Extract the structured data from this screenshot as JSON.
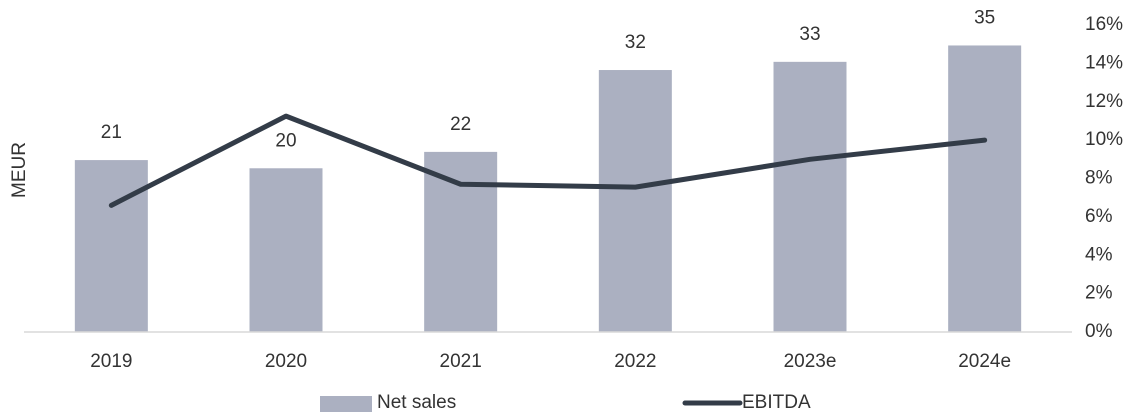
{
  "chart_data": {
    "type": "bar_line",
    "y_label": "MEUR",
    "categories": [
      "2019",
      "2020",
      "2021",
      "2022",
      "2023e",
      "2024e"
    ],
    "series": [
      {
        "name": "Net sales",
        "type": "bar",
        "color": "#abb0c1",
        "values": [
          21,
          20,
          22,
          32,
          33,
          35
        ]
      },
      {
        "name": "EBITDA",
        "type": "line",
        "axis": "y2",
        "color": "#333c48",
        "values": [
          6.6,
          11.25,
          7.7,
          7.55,
          9.0,
          10.0
        ]
      }
    ],
    "ylim": [
      0,
      37.5
    ],
    "y2lim": [
      0,
      16
    ],
    "y2ticks": [
      {
        "value": 0,
        "label": "0%"
      },
      {
        "value": 2,
        "label": "2%"
      },
      {
        "value": 4,
        "label": "4%"
      },
      {
        "value": 6,
        "label": "6%"
      },
      {
        "value": 8,
        "label": "8%"
      },
      {
        "value": 10,
        "label": "10%"
      },
      {
        "value": 12,
        "label": "12%"
      },
      {
        "value": 14,
        "label": "14%"
      },
      {
        "value": 16,
        "label": "16%"
      }
    ],
    "legend": "bottom"
  }
}
